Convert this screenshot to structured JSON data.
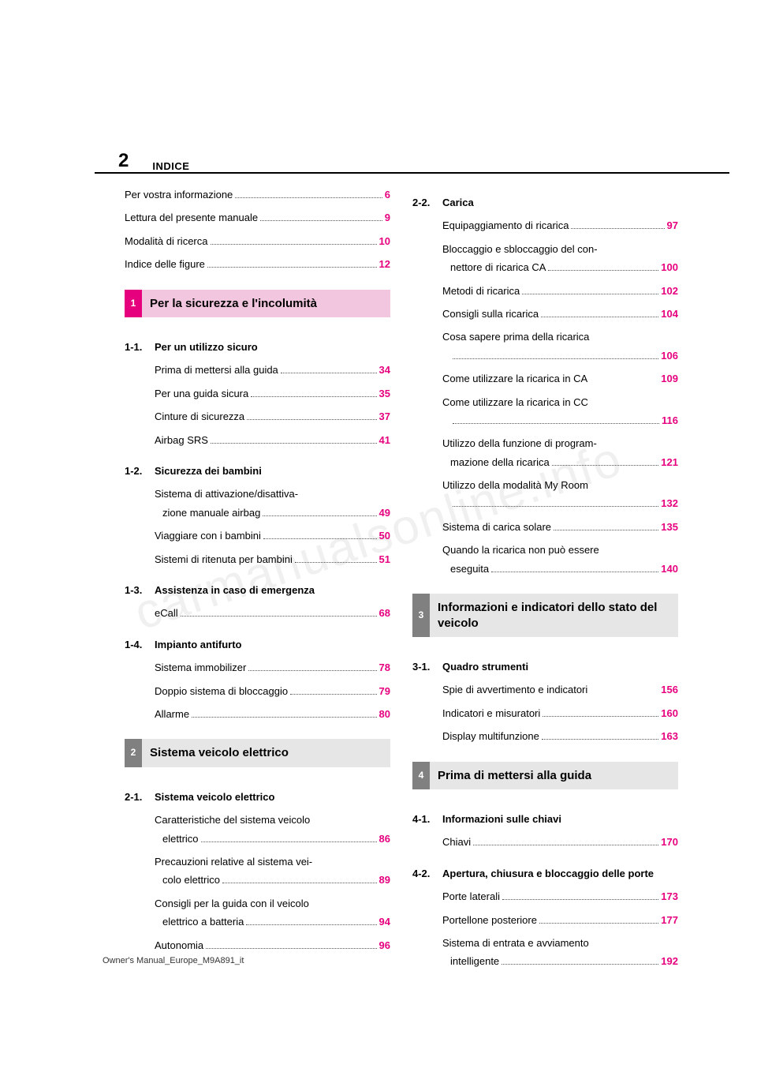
{
  "page_number": "2",
  "header_title": "INDICE",
  "footer": "Owner's Manual_Europe_M9A891_it",
  "watermark": "carmanualsonline.info",
  "intro": [
    {
      "label": "Per vostra informazione",
      "page": "6"
    },
    {
      "label": "Lettura del presente manuale",
      "page": "9"
    },
    {
      "label": "Modalità di ricerca",
      "page": "10"
    },
    {
      "label": "Indice delle figure",
      "page": "12"
    }
  ],
  "chapters": [
    {
      "num": "1",
      "title": "Per la sicurezza e l'incolumità",
      "highlight": true,
      "sections": [
        {
          "num": "1-1.",
          "title": "Per un utilizzo sicuro",
          "entries": [
            {
              "label": "Prima di mettersi alla guida",
              "page": "34"
            },
            {
              "label": "Per una guida sicura",
              "page": "35"
            },
            {
              "label": "Cinture di sicurezza",
              "page": "37"
            },
            {
              "label": "Airbag SRS",
              "page": "41"
            }
          ]
        },
        {
          "num": "1-2.",
          "title": "Sicurezza dei bambini",
          "entries": [
            {
              "line1": "Sistema di attivazione/disattiva-",
              "line2": "zione manuale airbag",
              "page": "49"
            },
            {
              "label": "Viaggiare con i bambini",
              "page": "50"
            },
            {
              "label": "Sistemi di ritenuta per bambini",
              "page": "51"
            }
          ]
        },
        {
          "num": "1-3.",
          "title": "Assistenza in caso di emergenza",
          "entries": [
            {
              "label": "eCall",
              "page": "68"
            }
          ]
        },
        {
          "num": "1-4.",
          "title": "Impianto antifurto",
          "entries": [
            {
              "label": "Sistema immobilizer",
              "page": "78"
            },
            {
              "label": "Doppio sistema di bloccaggio",
              "page": "79"
            },
            {
              "label": "Allarme",
              "page": "80"
            }
          ]
        }
      ]
    },
    {
      "num": "2",
      "title": "Sistema veicolo elettrico",
      "sections": [
        {
          "num": "2-1.",
          "title": "Sistema veicolo elettrico",
          "entries": [
            {
              "line1": "Caratteristiche del sistema veicolo",
              "line2": "elettrico",
              "page": "86"
            },
            {
              "line1": "Precauzioni relative al sistema vei-",
              "line2": "colo elettrico",
              "page": "89"
            },
            {
              "line1": "Consigli per la guida con il veicolo",
              "line2": "elettrico a batteria",
              "page": "94"
            },
            {
              "label": "Autonomia",
              "page": "96"
            }
          ]
        },
        {
          "num": "2-2.",
          "title": "Carica",
          "col": "right",
          "entries": [
            {
              "label": "Equipaggiamento di ricarica",
              "page": "97"
            },
            {
              "line1": "Bloccaggio e sbloccaggio del con-",
              "line2": "nettore di ricarica CA",
              "page": "100"
            },
            {
              "label": "Metodi di ricarica",
              "page": "102"
            },
            {
              "label": "Consigli sulla ricarica",
              "page": "104"
            },
            {
              "line1": "Cosa sapere prima della ricarica",
              "line2": "",
              "page": "106"
            },
            {
              "label": "Come utilizzare la ricarica in CA",
              "page": "109",
              "tight": true
            },
            {
              "line1": "Come utilizzare la ricarica in CC",
              "line2": "",
              "page": "116"
            },
            {
              "line1": "Utilizzo della funzione di program-",
              "line2": "mazione della ricarica",
              "page": "121"
            },
            {
              "line1": "Utilizzo della modalità My Room",
              "line2": "",
              "page": "132"
            },
            {
              "label": "Sistema di carica solare",
              "page": "135"
            },
            {
              "line1": "Quando la ricarica non può essere",
              "line2": "eseguita",
              "page": "140"
            }
          ]
        }
      ]
    },
    {
      "num": "3",
      "title": "Informazioni e indicatori dello stato del veicolo",
      "sections": [
        {
          "num": "3-1.",
          "title": "Quadro strumenti",
          "entries": [
            {
              "label": "Spie di avvertimento e indicatori",
              "page": "156",
              "tight": true
            },
            {
              "label": "Indicatori e misuratori",
              "page": "160"
            },
            {
              "label": "Display multifunzione",
              "page": "163"
            }
          ]
        }
      ]
    },
    {
      "num": "4",
      "title": "Prima di mettersi alla guida",
      "sections": [
        {
          "num": "4-1.",
          "title": "Informazioni sulle chiavi",
          "entries": [
            {
              "label": "Chiavi",
              "page": "170"
            }
          ]
        },
        {
          "num": "4-2.",
          "title": "Apertura, chiusura e bloccaggio delle porte",
          "entries": [
            {
              "label": "Porte laterali",
              "page": "173"
            },
            {
              "label": "Portellone posteriore",
              "page": "177"
            },
            {
              "line1": "Sistema di entrata e avviamento",
              "line2": "intelligente",
              "page": "192"
            }
          ]
        }
      ]
    }
  ]
}
